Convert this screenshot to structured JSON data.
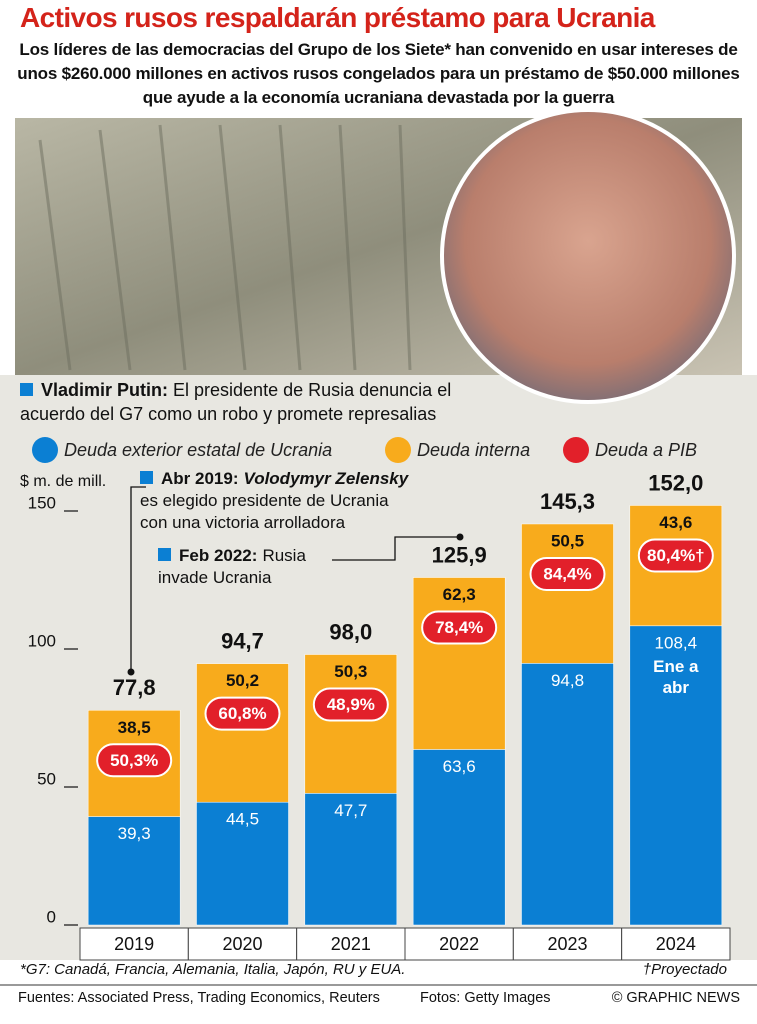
{
  "chart_data": {
    "type": "bar",
    "stacked": true,
    "title": "Activos rusos respaldarán préstamo para Ucrania",
    "subtitle": "Los líderes de las democracias del Grupo de los Siete* han convenido en usar intereses de unos $260.000 millones en activos rusos congelados para un préstamo de $50.000 millones que ayude a la economía ucraniana devastada por la guerra",
    "annotations": [
      {
        "label": "Vladimir Putin:",
        "text": "El presidente de Rusia denuncia el acuerdo del G7 como un robo y promete represalias"
      },
      {
        "label": "Abr 2019:",
        "name": "Volodymyr Zelensky",
        "text": "es elegido presidente de Ucrania con una victoria arrolladora"
      },
      {
        "label": "Feb 2022:",
        "text": "Rusia invade Ucrania"
      }
    ],
    "y_label": "$ m. de mill.",
    "categories": [
      "2019",
      "2020",
      "2021",
      "2022",
      "2023",
      "2024"
    ],
    "series": [
      {
        "name": "Deuda exterior estatal de Ucrania",
        "color": "#0b7fd3",
        "values": [
          39.3,
          44.5,
          47.7,
          63.6,
          94.8,
          108.4
        ],
        "value_labels": [
          "39,3",
          "44,5",
          "47,7",
          "63,6",
          "94,8",
          "108,4"
        ]
      },
      {
        "name": "Deuda interna",
        "color": "#f8ab1c",
        "values": [
          38.5,
          50.2,
          50.3,
          62.3,
          50.5,
          43.6
        ],
        "value_labels": [
          "38,5",
          "50,2",
          "50,3",
          "62,3",
          "50,5",
          "43,6"
        ]
      }
    ],
    "ratio": {
      "name": "Deuda a PIB",
      "color": "#e2202a",
      "values": [
        50.3,
        60.8,
        48.9,
        78.4,
        84.4,
        80.4
      ],
      "value_labels": [
        "50,3%",
        "60,8%",
        "48,9%",
        "78,4%",
        "84,4%",
        "80,4%†"
      ]
    },
    "totals": [
      77.8,
      94.7,
      98.0,
      125.9,
      145.3,
      152.0
    ],
    "total_labels": [
      "77,8",
      "94,7",
      "98,0",
      "125,9",
      "145,3",
      "152,0"
    ],
    "bar_note": "Ene a abr",
    "ylim": [
      0,
      160
    ],
    "yticks": [
      0,
      50,
      100,
      150
    ],
    "grid": false,
    "footnote": "*G7: Canadá, Francia, Alemania, Italia, Japón, RU y EUA.",
    "projection_note": "†Proyectado",
    "sources": "Fuentes: Associated Press, Trading Economics, Reuters",
    "photo_credit": "Fotos: Getty Images",
    "credit": "© GRAPHIC NEWS"
  }
}
